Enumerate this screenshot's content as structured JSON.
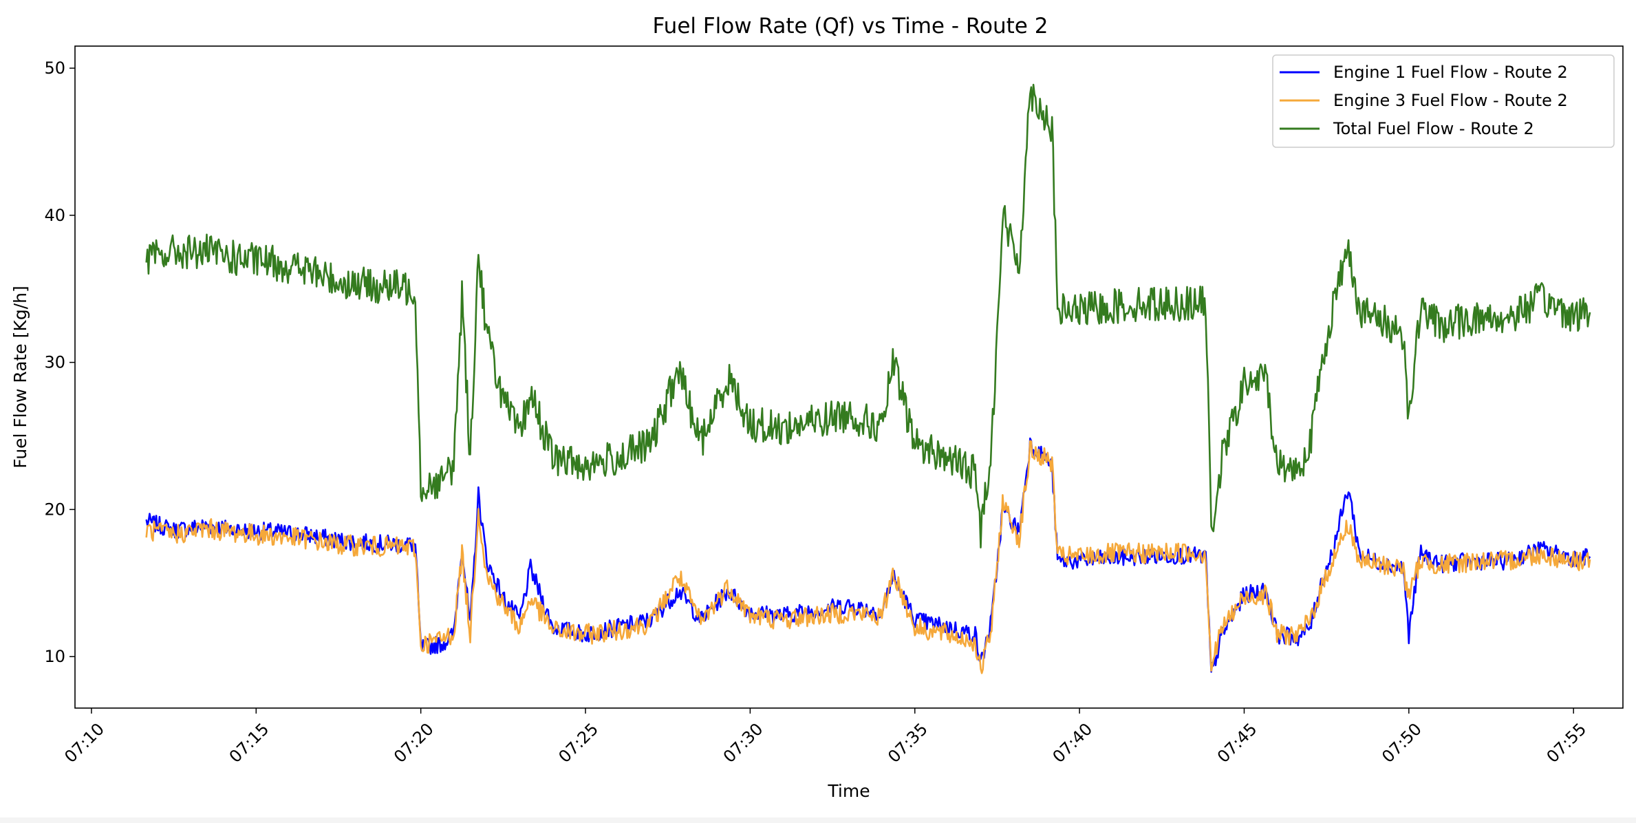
{
  "chart_data": {
    "type": "line",
    "title": "Fuel Flow Rate (Qf) vs Time - Route 2",
    "xlabel": "Time",
    "ylabel": "Fuel Flow Rate [Kg/h]",
    "xlim": [
      "07:09:30",
      "07:56:30"
    ],
    "ylim": [
      6.5,
      51.5
    ],
    "xticks": [
      "07:10",
      "07:15",
      "07:20",
      "07:25",
      "07:30",
      "07:35",
      "07:40",
      "07:45",
      "07:50",
      "07:55"
    ],
    "yticks": [
      10,
      20,
      30,
      40,
      50
    ],
    "grid": false,
    "legend_position": "upper right",
    "series": [
      {
        "name": "Engine 1 Fuel Flow - Route 2",
        "color": "#0000ff",
        "noise": 0.6,
        "points": [
          [
            "07:11:40",
            19.2
          ],
          [
            "07:12:30",
            18.6
          ],
          [
            "07:13:30",
            18.9
          ],
          [
            "07:14:30",
            18.6
          ],
          [
            "07:15:30",
            18.5
          ],
          [
            "07:16:30",
            18.3
          ],
          [
            "07:17:30",
            17.9
          ],
          [
            "07:18:30",
            17.7
          ],
          [
            "07:19:50",
            17.6
          ],
          [
            "07:20:00",
            10.6
          ],
          [
            "07:20:40",
            10.9
          ],
          [
            "07:21:00",
            11.5
          ],
          [
            "07:21:15",
            17.5
          ],
          [
            "07:21:30",
            12.0
          ],
          [
            "07:21:45",
            21.0
          ],
          [
            "07:22:00",
            16.5
          ],
          [
            "07:22:30",
            14.0
          ],
          [
            "07:23:00",
            12.5
          ],
          [
            "07:23:20",
            16.0
          ],
          [
            "07:24:00",
            12.0
          ],
          [
            "07:25:00",
            11.5
          ],
          [
            "07:26:00",
            12.0
          ],
          [
            "07:27:00",
            12.5
          ],
          [
            "07:27:50",
            14.5
          ],
          [
            "07:28:30",
            12.5
          ],
          [
            "07:29:20",
            14.5
          ],
          [
            "07:30:00",
            13.0
          ],
          [
            "07:31:00",
            12.8
          ],
          [
            "07:32:00",
            13.2
          ],
          [
            "07:33:00",
            13.5
          ],
          [
            "07:34:00",
            13.0
          ],
          [
            "07:34:20",
            15.5
          ],
          [
            "07:35:00",
            12.5
          ],
          [
            "07:36:00",
            12.0
          ],
          [
            "07:36:50",
            11.5
          ],
          [
            "07:37:00",
            9.5
          ],
          [
            "07:37:20",
            12.5
          ],
          [
            "07:37:40",
            20.0
          ],
          [
            "07:38:10",
            18.5
          ],
          [
            "07:38:30",
            24.5
          ],
          [
            "07:39:10",
            23.0
          ],
          [
            "07:39:20",
            16.5
          ],
          [
            "07:40:00",
            16.5
          ],
          [
            "07:41:00",
            16.7
          ],
          [
            "07:42:00",
            16.8
          ],
          [
            "07:43:00",
            16.9
          ],
          [
            "07:43:50",
            16.8
          ],
          [
            "07:44:00",
            8.8
          ],
          [
            "07:44:20",
            11.5
          ],
          [
            "07:45:00",
            14.2
          ],
          [
            "07:45:40",
            14.5
          ],
          [
            "07:46:00",
            11.5
          ],
          [
            "07:46:40",
            11.3
          ],
          [
            "07:47:00",
            12.0
          ],
          [
            "07:47:20",
            15.0
          ],
          [
            "07:47:40",
            17.0
          ],
          [
            "07:48:10",
            21.5
          ],
          [
            "07:48:30",
            17.0
          ],
          [
            "07:49:00",
            16.5
          ],
          [
            "07:49:50",
            16.0
          ],
          [
            "07:50:00",
            11.5
          ],
          [
            "07:50:20",
            17.0
          ],
          [
            "07:51:00",
            16.3
          ],
          [
            "07:52:00",
            16.5
          ],
          [
            "07:53:00",
            16.5
          ],
          [
            "07:54:00",
            17.3
          ],
          [
            "07:55:00",
            16.7
          ],
          [
            "07:55:30",
            16.8
          ]
        ]
      },
      {
        "name": "Engine 3 Fuel Flow - Route 2",
        "color": "#f5a83a",
        "noise": 0.7,
        "points": [
          [
            "07:11:40",
            18.6
          ],
          [
            "07:12:30",
            18.3
          ],
          [
            "07:13:30",
            18.7
          ],
          [
            "07:14:30",
            18.4
          ],
          [
            "07:15:30",
            18.2
          ],
          [
            "07:16:30",
            18.0
          ],
          [
            "07:17:30",
            17.6
          ],
          [
            "07:18:30",
            17.5
          ],
          [
            "07:19:50",
            17.4
          ],
          [
            "07:20:00",
            10.8
          ],
          [
            "07:20:40",
            11.2
          ],
          [
            "07:21:00",
            11.6
          ],
          [
            "07:21:15",
            17.0
          ],
          [
            "07:21:30",
            11.5
          ],
          [
            "07:21:45",
            20.0
          ],
          [
            "07:22:00",
            15.5
          ],
          [
            "07:22:30",
            13.5
          ],
          [
            "07:23:00",
            12.0
          ],
          [
            "07:23:20",
            14.0
          ],
          [
            "07:24:00",
            11.8
          ],
          [
            "07:25:00",
            11.5
          ],
          [
            "07:26:00",
            11.8
          ],
          [
            "07:27:00",
            12.3
          ],
          [
            "07:27:50",
            15.5
          ],
          [
            "07:28:30",
            12.3
          ],
          [
            "07:29:20",
            14.8
          ],
          [
            "07:30:00",
            12.8
          ],
          [
            "07:31:00",
            12.5
          ],
          [
            "07:32:00",
            12.8
          ],
          [
            "07:33:00",
            13.0
          ],
          [
            "07:34:00",
            12.7
          ],
          [
            "07:34:20",
            15.8
          ],
          [
            "07:35:00",
            12.0
          ],
          [
            "07:36:00",
            11.5
          ],
          [
            "07:36:50",
            11.0
          ],
          [
            "07:37:00",
            9.0
          ],
          [
            "07:37:20",
            12.0
          ],
          [
            "07:37:40",
            20.5
          ],
          [
            "07:38:10",
            18.0
          ],
          [
            "07:38:30",
            24.0
          ],
          [
            "07:39:10",
            23.2
          ],
          [
            "07:39:20",
            16.8
          ],
          [
            "07:40:00",
            16.8
          ],
          [
            "07:41:00",
            17.0
          ],
          [
            "07:42:00",
            17.0
          ],
          [
            "07:43:00",
            17.1
          ],
          [
            "07:43:50",
            17.0
          ],
          [
            "07:44:00",
            9.3
          ],
          [
            "07:44:20",
            12.0
          ],
          [
            "07:45:00",
            14.0
          ],
          [
            "07:45:40",
            14.3
          ],
          [
            "07:46:00",
            11.5
          ],
          [
            "07:46:40",
            11.5
          ],
          [
            "07:47:00",
            12.5
          ],
          [
            "07:47:20",
            14.5
          ],
          [
            "07:47:40",
            16.5
          ],
          [
            "07:48:10",
            19.0
          ],
          [
            "07:48:30",
            16.5
          ],
          [
            "07:49:00",
            16.3
          ],
          [
            "07:49:50",
            16.0
          ],
          [
            "07:50:00",
            14.0
          ],
          [
            "07:50:20",
            16.5
          ],
          [
            "07:51:00",
            16.2
          ],
          [
            "07:52:00",
            16.5
          ],
          [
            "07:53:00",
            16.5
          ],
          [
            "07:54:00",
            17.0
          ],
          [
            "07:55:00",
            16.5
          ],
          [
            "07:55:30",
            16.6
          ]
        ]
      },
      {
        "name": "Total Fuel Flow - Route 2",
        "color": "#347b1f",
        "noise": 1.2,
        "points": [
          [
            "07:11:40",
            37.0
          ],
          [
            "07:12:30",
            37.5
          ],
          [
            "07:13:30",
            37.5
          ],
          [
            "07:14:30",
            37.0
          ],
          [
            "07:15:30",
            36.8
          ],
          [
            "07:16:30",
            36.3
          ],
          [
            "07:17:30",
            35.5
          ],
          [
            "07:18:30",
            35.2
          ],
          [
            "07:19:50",
            35.0
          ],
          [
            "07:20:00",
            21.5
          ],
          [
            "07:20:40",
            22.0
          ],
          [
            "07:21:00",
            23.0
          ],
          [
            "07:21:15",
            34.5
          ],
          [
            "07:21:30",
            23.5
          ],
          [
            "07:21:45",
            37.5
          ],
          [
            "07:22:00",
            32.0
          ],
          [
            "07:22:30",
            27.5
          ],
          [
            "07:23:00",
            25.0
          ],
          [
            "07:23:20",
            28.0
          ],
          [
            "07:24:00",
            23.5
          ],
          [
            "07:25:00",
            23.0
          ],
          [
            "07:26:00",
            23.5
          ],
          [
            "07:27:00",
            24.5
          ],
          [
            "07:27:50",
            29.5
          ],
          [
            "07:28:30",
            24.5
          ],
          [
            "07:29:20",
            29.0
          ],
          [
            "07:30:00",
            25.8
          ],
          [
            "07:31:00",
            25.5
          ],
          [
            "07:32:00",
            26.0
          ],
          [
            "07:33:00",
            26.5
          ],
          [
            "07:34:00",
            25.5
          ],
          [
            "07:34:20",
            30.0
          ],
          [
            "07:35:00",
            24.5
          ],
          [
            "07:36:00",
            23.5
          ],
          [
            "07:36:50",
            22.5
          ],
          [
            "07:37:00",
            18.5
          ],
          [
            "07:37:20",
            24.5
          ],
          [
            "07:37:40",
            40.0
          ],
          [
            "07:38:10",
            36.5
          ],
          [
            "07:38:30",
            48.5
          ],
          [
            "07:39:10",
            46.0
          ],
          [
            "07:39:20",
            33.5
          ],
          [
            "07:40:00",
            33.5
          ],
          [
            "07:41:00",
            33.8
          ],
          [
            "07:42:00",
            34.0
          ],
          [
            "07:43:00",
            34.0
          ],
          [
            "07:43:50",
            34.0
          ],
          [
            "07:44:00",
            18.5
          ],
          [
            "07:44:20",
            23.5
          ],
          [
            "07:45:00",
            28.5
          ],
          [
            "07:45:40",
            29.0
          ],
          [
            "07:46:00",
            23.0
          ],
          [
            "07:46:40",
            22.8
          ],
          [
            "07:47:00",
            24.5
          ],
          [
            "07:47:20",
            29.5
          ],
          [
            "07:47:40",
            33.5
          ],
          [
            "07:48:10",
            38.0
          ],
          [
            "07:48:30",
            33.5
          ],
          [
            "07:49:00",
            33.0
          ],
          [
            "07:49:50",
            32.0
          ],
          [
            "07:50:00",
            26.0
          ],
          [
            "07:50:20",
            33.5
          ],
          [
            "07:51:00",
            32.5
          ],
          [
            "07:52:00",
            33.0
          ],
          [
            "07:53:00",
            33.0
          ],
          [
            "07:54:00",
            34.3
          ],
          [
            "07:55:00",
            33.2
          ],
          [
            "07:55:30",
            33.4
          ]
        ]
      }
    ]
  }
}
